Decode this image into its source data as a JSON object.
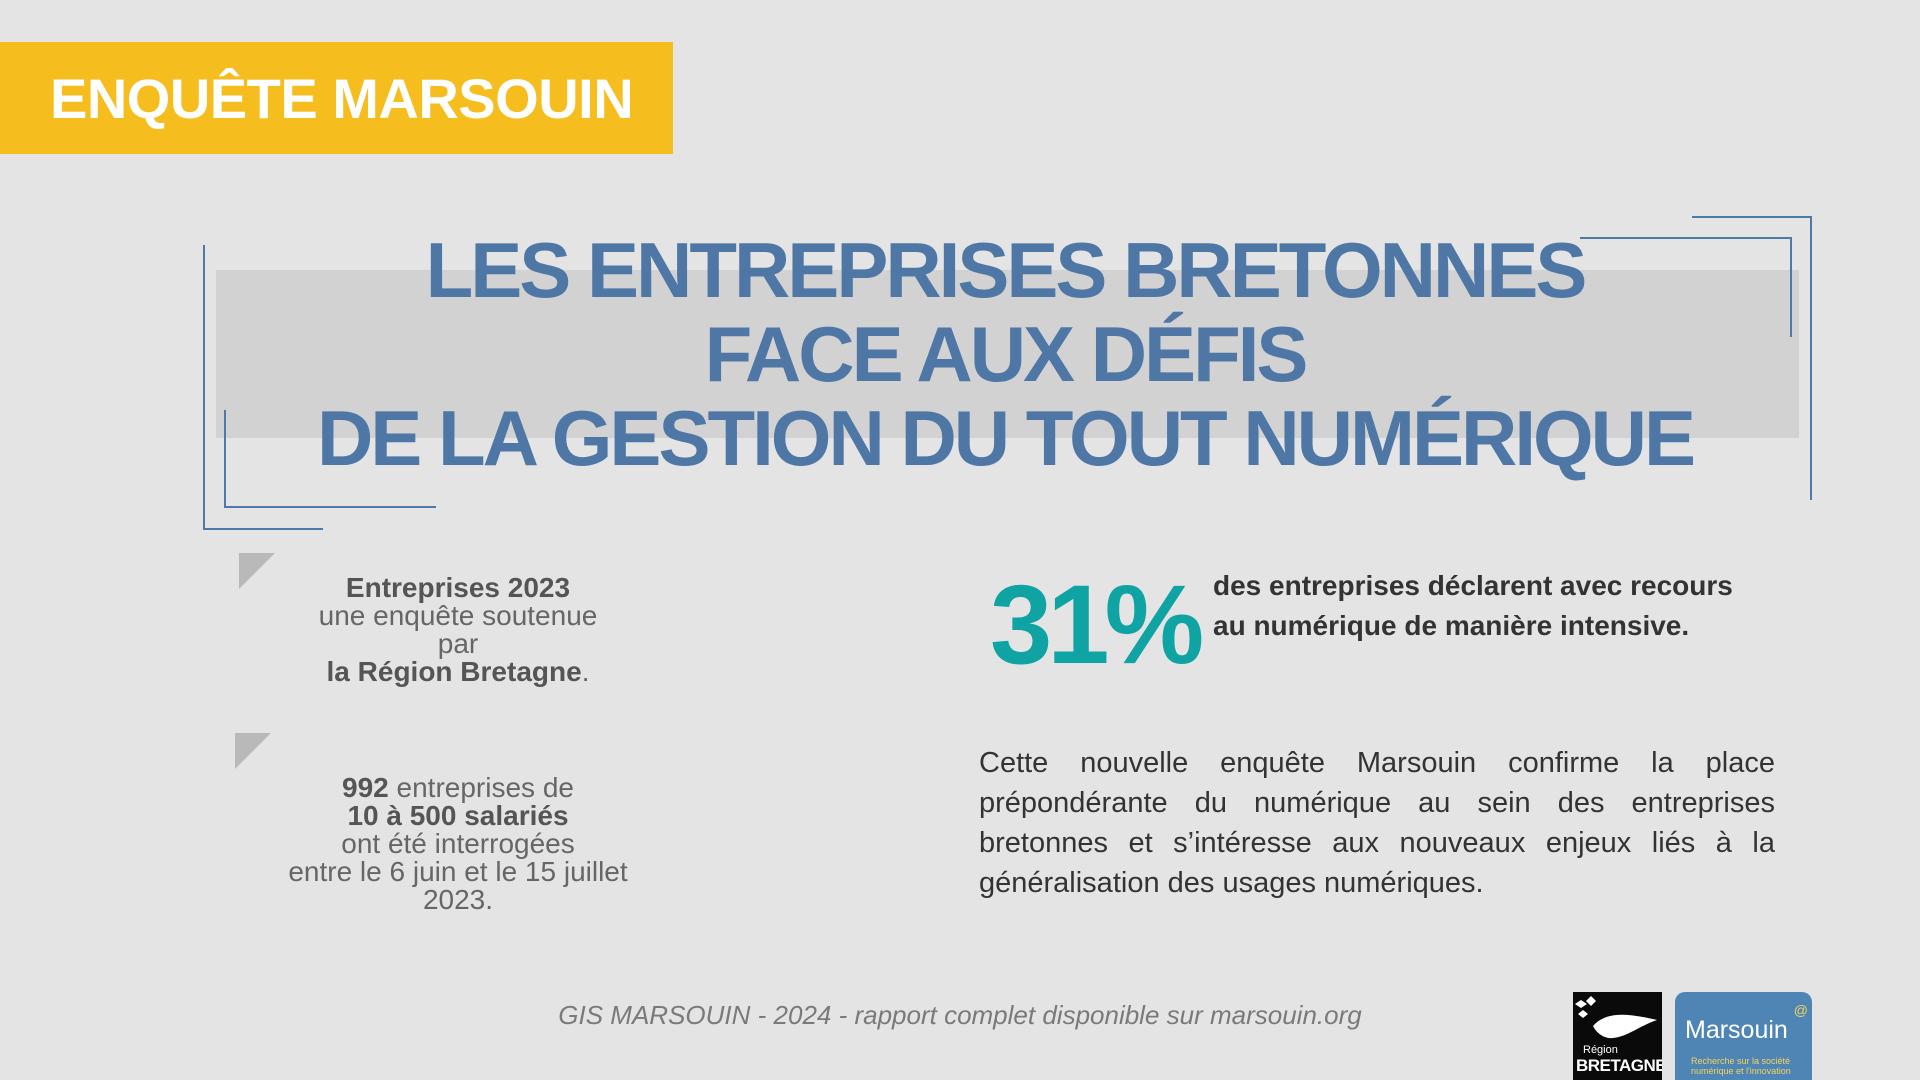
{
  "banner": {
    "label": "ENQUÊTE MARSOUIN"
  },
  "title": {
    "line1": "LES ENTREPRISES BRETONNES",
    "line2": "FACE AUX DÉFIS",
    "line3": "DE LA GESTION DU TOUT NUMÉRIQUE"
  },
  "left_info": {
    "block1": {
      "line1": "Entreprises 2023",
      "line2": "une enquête soutenue",
      "line3": "par",
      "line4_bold": "la Région Bretagne",
      "line4_end": "."
    },
    "block2": {
      "number": "992",
      "line1_rest": " entreprises de",
      "line2_bold": "10 à 500 salariés",
      "line3": "ont été interrogées",
      "line4": "entre le 6 juin et le 15 juillet",
      "line5": "2023."
    }
  },
  "stat": {
    "value": "31%",
    "text": "des entreprises déclarent avec recours au numérique de manière intensive."
  },
  "paragraph": "Cette nouvelle enquête Marsouin confirme la place prépondérante du numérique au sein des entreprises bretonnes et s’intéresse aux nouveaux enjeux liés à la généralisation des usages numériques.",
  "footer": "GIS MARSOUIN - 2024 - rapport complet disponible sur marsouin.org",
  "logos": {
    "region": {
      "small": "Région",
      "big": "BRETAGNE"
    },
    "marsouin": {
      "name": "Marsouin",
      "tagline": "Recherche sur la société numérique et l'innovation",
      "at": "@"
    }
  },
  "colors": {
    "banner": "#f6bd1e",
    "title": "#4f77a6",
    "stat": "#0fa3a3",
    "background": "#e4e4e4"
  }
}
